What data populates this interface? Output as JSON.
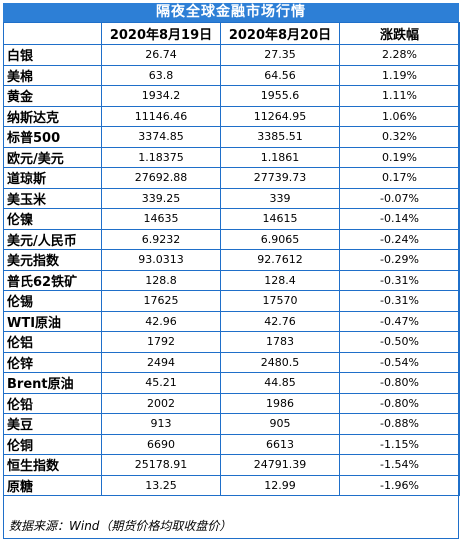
{
  "title": "隔夜全球金融市场行情",
  "columns": [
    "",
    "2020年8月19日",
    "2020年8月20日",
    "涨跌幅"
  ],
  "rows": [
    {
      "name": "白银",
      "d1": "26.74",
      "d2": "27.35",
      "chg": "2.28%"
    },
    {
      "name": "美棉",
      "d1": "63.8",
      "d2": "64.56",
      "chg": "1.19%"
    },
    {
      "name": "黄金",
      "d1": "1934.2",
      "d2": "1955.6",
      "chg": "1.11%"
    },
    {
      "name": "纳斯达克",
      "d1": "11146.46",
      "d2": "11264.95",
      "chg": "1.06%"
    },
    {
      "name": "标普500",
      "d1": "3374.85",
      "d2": "3385.51",
      "chg": "0.32%"
    },
    {
      "name": "欧元/美元",
      "d1": "1.18375",
      "d2": "1.1861",
      "chg": "0.19%"
    },
    {
      "name": "道琼斯",
      "d1": "27692.88",
      "d2": "27739.73",
      "chg": "0.17%"
    },
    {
      "name": "美玉米",
      "d1": "339.25",
      "d2": "339",
      "chg": "-0.07%"
    },
    {
      "name": "伦镍",
      "d1": "14635",
      "d2": "14615",
      "chg": "-0.14%"
    },
    {
      "name": "美元/人民币",
      "d1": "6.9232",
      "d2": "6.9065",
      "chg": "-0.24%"
    },
    {
      "name": "美元指数",
      "d1": "93.0313",
      "d2": "92.7612",
      "chg": "-0.29%"
    },
    {
      "name": "普氏62铁矿",
      "d1": "128.8",
      "d2": "128.4",
      "chg": "-0.31%"
    },
    {
      "name": "伦锡",
      "d1": "17625",
      "d2": "17570",
      "chg": "-0.31%"
    },
    {
      "name": "WTI原油",
      "d1": "42.96",
      "d2": "42.76",
      "chg": "-0.47%"
    },
    {
      "name": "伦铝",
      "d1": "1792",
      "d2": "1783",
      "chg": "-0.50%"
    },
    {
      "name": "伦锌",
      "d1": "2494",
      "d2": "2480.5",
      "chg": "-0.54%"
    },
    {
      "name": "Brent原油",
      "d1": "45.21",
      "d2": "44.85",
      "chg": "-0.80%"
    },
    {
      "name": "伦铅",
      "d1": "2002",
      "d2": "1986",
      "chg": "-0.80%"
    },
    {
      "name": "美豆",
      "d1": "913",
      "d2": "905",
      "chg": "-0.88%"
    },
    {
      "name": "伦铜",
      "d1": "6690",
      "d2": "6613",
      "chg": "-1.15%"
    },
    {
      "name": "恒生指数",
      "d1": "25178.91",
      "d2": "24791.39",
      "chg": "-1.54%"
    },
    {
      "name": "原糖",
      "d1": "13.25",
      "d2": "12.99",
      "chg": "-1.96%"
    }
  ],
  "footer": "数据来源：Wind（期货价格均取收盘价）",
  "colors": {
    "title_bg": "#2d7fd6",
    "border": "#1f6fc9"
  }
}
